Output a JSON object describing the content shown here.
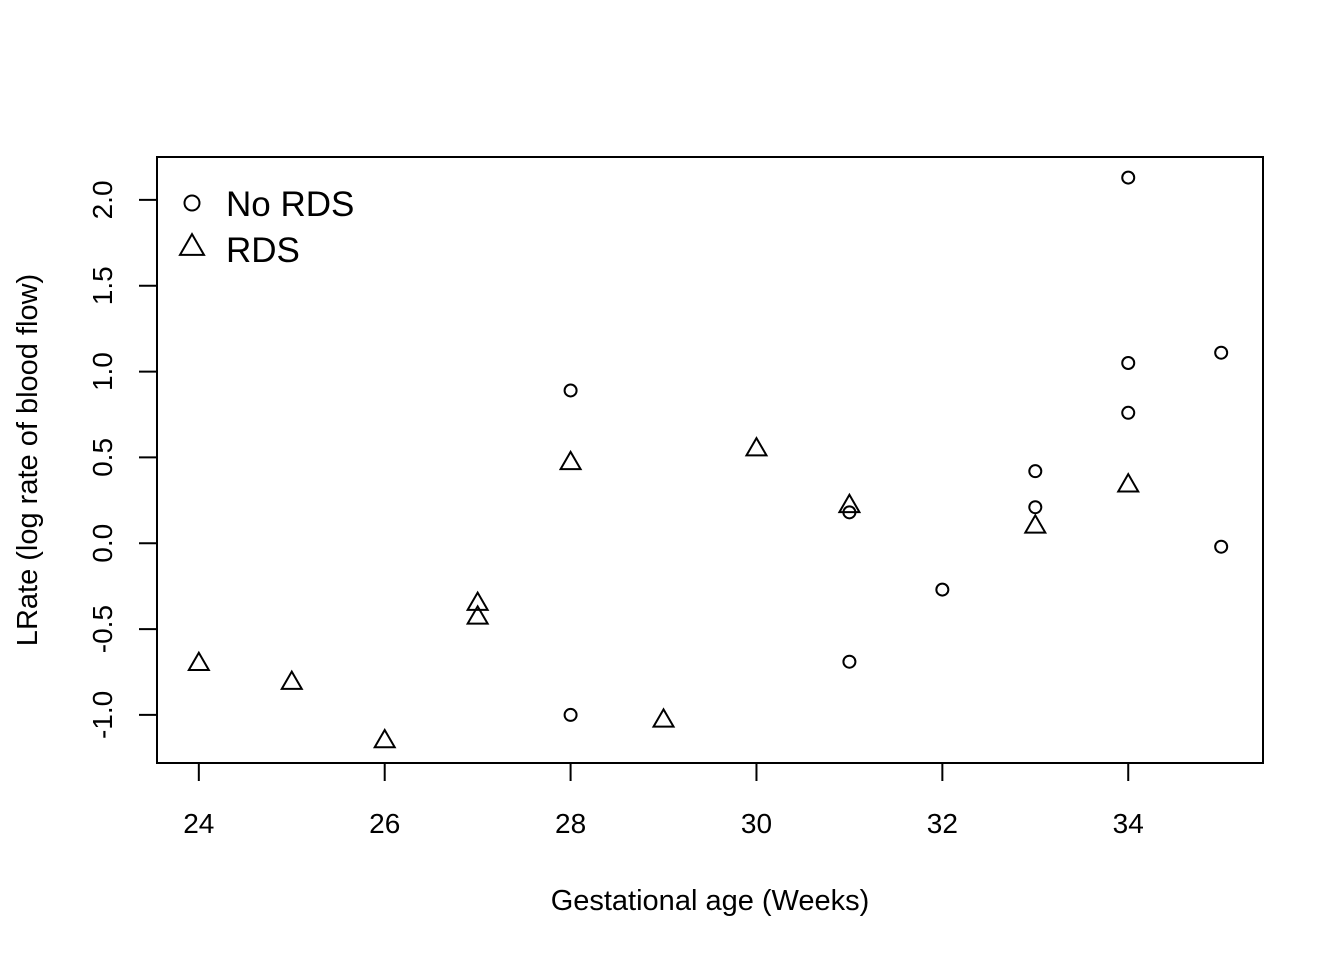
{
  "chart_data": {
    "type": "scatter",
    "title": "",
    "xlabel": "Gestational age (Weeks)",
    "ylabel": "LRate (log rate of blood flow)",
    "xlim": [
      23.55,
      35.45
    ],
    "ylim": [
      -1.28,
      2.25
    ],
    "xticks": [
      24,
      26,
      28,
      30,
      32,
      34
    ],
    "xtick_labels": [
      "24",
      "26",
      "28",
      "30",
      "32",
      "34"
    ],
    "yticks": [
      -1.0,
      -0.5,
      0.0,
      0.5,
      1.0,
      1.5,
      2.0
    ],
    "ytick_labels": [
      "-1.0",
      "-0.5",
      "0.0",
      "0.5",
      "1.0",
      "1.5",
      "2.0"
    ],
    "grid": false,
    "legend_position": "top-left",
    "series": [
      {
        "name": "No RDS",
        "marker": "circle",
        "color": "#000000",
        "points": [
          {
            "x": 28,
            "y": 0.89
          },
          {
            "x": 28,
            "y": -1.0
          },
          {
            "x": 31,
            "y": 0.18
          },
          {
            "x": 31,
            "y": -0.69
          },
          {
            "x": 32,
            "y": -0.27
          },
          {
            "x": 33,
            "y": 0.42
          },
          {
            "x": 33,
            "y": 0.21
          },
          {
            "x": 34,
            "y": 2.13
          },
          {
            "x": 34,
            "y": 1.05
          },
          {
            "x": 34,
            "y": 0.76
          },
          {
            "x": 35,
            "y": 1.11
          },
          {
            "x": 35,
            "y": -0.02
          }
        ]
      },
      {
        "name": "RDS",
        "marker": "triangle",
        "color": "#000000",
        "points": [
          {
            "x": 24,
            "y": -0.7
          },
          {
            "x": 25,
            "y": -0.81
          },
          {
            "x": 26,
            "y": -1.15
          },
          {
            "x": 27,
            "y": -0.35
          },
          {
            "x": 27,
            "y": -0.43
          },
          {
            "x": 28,
            "y": 0.47
          },
          {
            "x": 29,
            "y": -1.03
          },
          {
            "x": 30,
            "y": 0.55
          },
          {
            "x": 31,
            "y": 0.22
          },
          {
            "x": 33,
            "y": 0.1
          },
          {
            "x": 34,
            "y": 0.34
          }
        ]
      }
    ]
  }
}
